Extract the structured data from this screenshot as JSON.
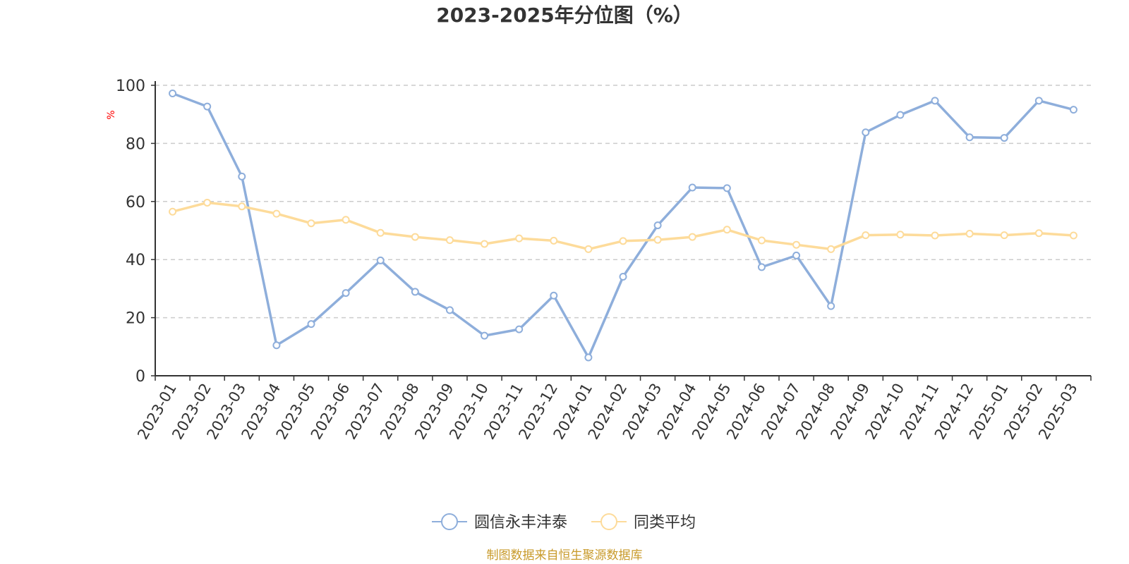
{
  "chart_data": {
    "type": "line",
    "title": "2023-2025年分位图（%）",
    "ylabel": "%",
    "xlabel": "",
    "ylim": [
      0,
      100
    ],
    "yticks": [
      0,
      20,
      40,
      60,
      80,
      100
    ],
    "grid": "horizontal dashed",
    "legend_position": "bottom-center",
    "categories": [
      "2023-01",
      "2023-02",
      "2023-03",
      "2023-04",
      "2023-05",
      "2023-06",
      "2023-07",
      "2023-08",
      "2023-09",
      "2023-10",
      "2023-11",
      "2023-12",
      "2024-01",
      "2024-02",
      "2024-03",
      "2024-04",
      "2024-05",
      "2024-06",
      "2024-07",
      "2024-08",
      "2024-09",
      "2024-10",
      "2024-11",
      "2024-12",
      "2025-01",
      "2025-02",
      "2025-03"
    ],
    "series": [
      {
        "name": "圆信永丰沣泰",
        "color": "#8eaedb",
        "values": [
          97.2,
          92.7,
          68.6,
          10.5,
          17.8,
          28.5,
          39.7,
          28.9,
          22.6,
          13.8,
          16.0,
          27.6,
          6.3,
          34.1,
          51.8,
          64.8,
          64.6,
          37.4,
          41.4,
          24.0,
          83.8,
          89.8,
          94.7,
          82.1,
          81.9,
          94.7,
          91.6
        ]
      },
      {
        "name": "同类平均",
        "color": "#fddb9a",
        "values": [
          56.5,
          59.6,
          58.3,
          55.8,
          52.5,
          53.7,
          49.2,
          47.8,
          46.7,
          45.4,
          47.3,
          46.5,
          43.6,
          46.4,
          46.8,
          47.8,
          50.3,
          46.6,
          45.1,
          43.6,
          48.4,
          48.6,
          48.3,
          48.9,
          48.4,
          49.1,
          48.3
        ]
      }
    ]
  },
  "source_note": "制图数据来自恒生聚源数据库",
  "colors": {
    "axis": "#333333",
    "grid": "#cccccc",
    "ylabel": "#ff0000",
    "source": "#c89a2a"
  }
}
